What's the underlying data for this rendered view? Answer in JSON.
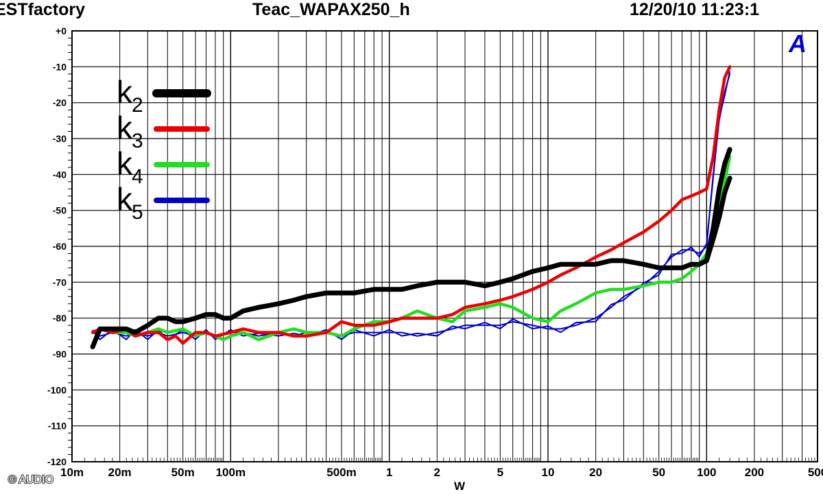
{
  "header": {
    "left": "ESTfactory",
    "center": "Teac_WAPAX250_h",
    "right": "12/20/10 11:23:1"
  },
  "logo_text": "A",
  "copyright": "© AUDIO",
  "chart_data": {
    "type": "line",
    "xlabel": "W",
    "ylabel": "",
    "xscale": "log",
    "xlim": [
      0.01,
      500
    ],
    "ylim": [
      -120,
      0
    ],
    "grid": true,
    "legend_position": "top-left",
    "x_tick_labels": [
      {
        "value": 0.01,
        "label": "10m"
      },
      {
        "value": 0.02,
        "label": "20m"
      },
      {
        "value": 0.05,
        "label": "50m"
      },
      {
        "value": 0.1,
        "label": "100m"
      },
      {
        "value": 0.5,
        "label": "500m"
      },
      {
        "value": 1,
        "label": "1"
      },
      {
        "value": 2,
        "label": "2"
      },
      {
        "value": 5,
        "label": "5"
      },
      {
        "value": 10,
        "label": "10"
      },
      {
        "value": 20,
        "label": "20"
      },
      {
        "value": 50,
        "label": "50"
      },
      {
        "value": 100,
        "label": "100"
      },
      {
        "value": 200,
        "label": "200"
      },
      {
        "value": 500,
        "label": "500"
      }
    ],
    "y_tick_labels": [
      {
        "value": 0,
        "label": "+0"
      },
      {
        "value": -10,
        "label": "-10"
      },
      {
        "value": -20,
        "label": "-20"
      },
      {
        "value": -30,
        "label": "-30"
      },
      {
        "value": -40,
        "label": "-40"
      },
      {
        "value": -50,
        "label": "-50"
      },
      {
        "value": -60,
        "label": "-60"
      },
      {
        "value": -70,
        "label": "-70"
      },
      {
        "value": -80,
        "label": "-80"
      },
      {
        "value": -90,
        "label": "-90"
      },
      {
        "value": -100,
        "label": "-100"
      },
      {
        "value": -110,
        "label": "-110"
      },
      {
        "value": -120,
        "label": "-120"
      }
    ],
    "series": [
      {
        "name": "k2",
        "legend_base": "k",
        "legend_sub": "2",
        "color": "#000000",
        "style": "thick",
        "x": [
          0.0135,
          0.015,
          0.018,
          0.022,
          0.025,
          0.03,
          0.035,
          0.04,
          0.045,
          0.05,
          0.06,
          0.07,
          0.08,
          0.09,
          0.1,
          0.12,
          0.15,
          0.2,
          0.25,
          0.3,
          0.4,
          0.5,
          0.6,
          0.8,
          1,
          1.2,
          1.5,
          2,
          2.5,
          3,
          4,
          5,
          6,
          8,
          10,
          12,
          15,
          20,
          25,
          30,
          40,
          50,
          60,
          70,
          80,
          90,
          100,
          110,
          120,
          130,
          140
        ],
        "y": [
          -88,
          -83,
          -83,
          -83,
          -84,
          -82,
          -80,
          -80,
          -81,
          -81,
          -80,
          -79,
          -79,
          -80,
          -80,
          -78,
          -77,
          -76,
          -75,
          -74,
          -73,
          -73,
          -73,
          -72,
          -72,
          -72,
          -71,
          -70,
          -70,
          -70,
          -71,
          -70,
          -69,
          -67,
          -66,
          -65,
          -65,
          -65,
          -64,
          -64,
          -65,
          -66,
          -66,
          -66,
          -65,
          -65,
          -64,
          -58,
          -52,
          -45,
          -41
        ]
      },
      {
        "name": "k2-peak",
        "legend_base": "",
        "legend_sub": "",
        "color": "#000000",
        "style": "thick-branch",
        "x": [
          100,
          110,
          120,
          130,
          140
        ],
        "y": [
          -64,
          -55,
          -44,
          -37,
          -33
        ]
      },
      {
        "name": "k3",
        "legend_base": "k",
        "legend_sub": "3",
        "color": "#ee0000",
        "style": "medium",
        "x": [
          0.0135,
          0.015,
          0.018,
          0.022,
          0.025,
          0.03,
          0.035,
          0.04,
          0.045,
          0.05,
          0.06,
          0.07,
          0.08,
          0.1,
          0.12,
          0.15,
          0.2,
          0.25,
          0.3,
          0.4,
          0.5,
          0.6,
          0.8,
          1,
          1.2,
          1.5,
          2,
          2.5,
          3,
          4,
          5,
          6,
          8,
          10,
          12,
          15,
          20,
          25,
          30,
          40,
          50,
          60,
          70,
          80,
          90,
          100,
          110,
          120,
          130,
          140
        ],
        "y": [
          -84,
          -83,
          -84,
          -83,
          -85,
          -84,
          -84,
          -86,
          -85,
          -87,
          -84,
          -84,
          -85,
          -84,
          -83,
          -84,
          -84,
          -85,
          -85,
          -84,
          -81,
          -82,
          -82,
          -81,
          -80,
          -80,
          -80,
          -79,
          -77,
          -76,
          -75,
          -74,
          -72,
          -70,
          -68,
          -66,
          -63,
          -61,
          -59,
          -56,
          -53,
          -50,
          -47,
          -46,
          -45,
          -44,
          -35,
          -22,
          -13,
          -10
        ]
      },
      {
        "name": "k4",
        "legend_base": "k",
        "legend_sub": "4",
        "color": "#22dd22",
        "style": "medium",
        "x": [
          0.0135,
          0.015,
          0.018,
          0.022,
          0.025,
          0.03,
          0.035,
          0.04,
          0.05,
          0.06,
          0.07,
          0.08,
          0.09,
          0.1,
          0.12,
          0.15,
          0.2,
          0.25,
          0.3,
          0.4,
          0.5,
          0.6,
          0.8,
          1,
          1.2,
          1.5,
          2,
          2.5,
          3,
          4,
          5,
          6,
          8,
          10,
          12,
          15,
          20,
          25,
          30,
          40,
          50,
          60,
          70,
          80,
          90,
          100,
          110,
          120,
          130,
          140
        ],
        "y": [
          -84,
          -83,
          -84,
          -84,
          -85,
          -84,
          -83,
          -84,
          -83,
          -85,
          -84,
          -85,
          -86,
          -85,
          -84,
          -86,
          -84,
          -83,
          -84,
          -84,
          -85,
          -83,
          -81,
          -81,
          -80,
          -78,
          -80,
          -81,
          -78,
          -77,
          -76,
          -77,
          -80,
          -81,
          -78,
          -76,
          -73,
          -72,
          -72,
          -71,
          -70,
          -70,
          -69,
          -67,
          -65,
          -62,
          -55,
          -48,
          -42,
          -35
        ]
      },
      {
        "name": "k5",
        "legend_base": "k",
        "legend_sub": "5",
        "color": "#0000cc",
        "style": "thin",
        "x": [
          0.0135,
          0.015,
          0.018,
          0.022,
          0.025,
          0.03,
          0.035,
          0.04,
          0.05,
          0.06,
          0.07,
          0.08,
          0.1,
          0.12,
          0.15,
          0.2,
          0.25,
          0.3,
          0.4,
          0.5,
          0.6,
          0.8,
          1,
          1.2,
          1.5,
          2,
          2.5,
          3,
          4,
          5,
          6,
          8,
          10,
          12,
          15,
          20,
          25,
          30,
          40,
          50,
          60,
          70,
          80,
          90,
          100,
          110,
          120,
          130,
          140
        ],
        "y": [
          -84,
          -85,
          -84,
          -85,
          -84,
          -85,
          -84,
          -85,
          -84,
          -85,
          -84,
          -85,
          -84,
          -84,
          -85,
          -84,
          -85,
          -84,
          -84,
          -85,
          -84,
          -84,
          -84,
          -84,
          -85,
          -84,
          -83,
          -82,
          -82,
          -82,
          -81,
          -82,
          -83,
          -83,
          -82,
          -80,
          -77,
          -74,
          -71,
          -67,
          -63,
          -61,
          -61,
          -62,
          -60,
          -40,
          -25,
          -17,
          -12
        ]
      }
    ]
  }
}
